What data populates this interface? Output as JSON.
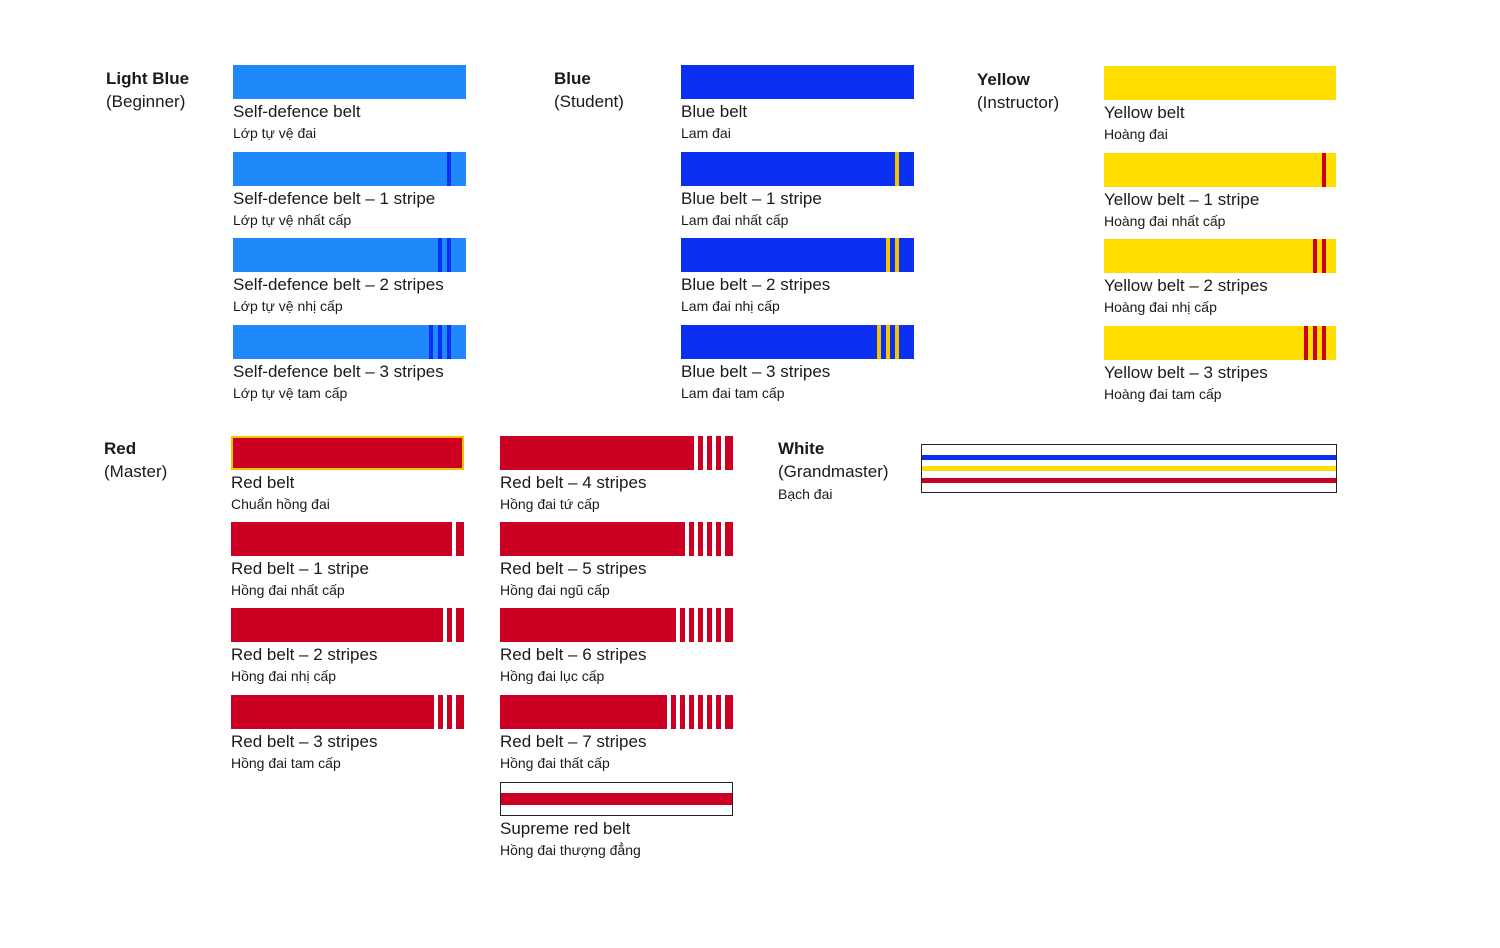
{
  "colors": {
    "light_blue": "#1f88fb",
    "light_blue_stripe": "#0b2ff0",
    "blue": "#0a2ff0",
    "blue_stripe": "#f2c400",
    "yellow": "#ffde00",
    "yellow_stripe": "#cc0022",
    "red": "#cc0022",
    "red_stripe": "#ffffff",
    "white": "#ffffff"
  },
  "groups": {
    "light_blue": {
      "name": "Light Blue",
      "rank": "(Beginner)",
      "belts": [
        {
          "label": "Self-defence belt",
          "sub": "Lớp tự vệ đai",
          "stripes": 0
        },
        {
          "label": "Self-defence belt – 1 stripe",
          "sub": "Lớp tự vệ nhất cấp",
          "stripes": 1
        },
        {
          "label": "Self-defence belt – 2 stripes",
          "sub": "Lớp tự vệ nhị cấp",
          "stripes": 2
        },
        {
          "label": "Self-defence belt – 3 stripes",
          "sub": "Lớp tự vệ tam cấp",
          "stripes": 3
        }
      ]
    },
    "blue": {
      "name": "Blue",
      "rank": "(Student)",
      "belts": [
        {
          "label": "Blue belt",
          "sub": "Lam đai",
          "stripes": 0
        },
        {
          "label": "Blue belt – 1 stripe",
          "sub": "Lam đai nhất cấp",
          "stripes": 1
        },
        {
          "label": "Blue belt – 2 stripes",
          "sub": "Lam đai nhị cấp",
          "stripes": 2
        },
        {
          "label": "Blue belt – 3 stripes",
          "sub": "Lam đai tam cấp",
          "stripes": 3
        }
      ]
    },
    "yellow": {
      "name": "Yellow",
      "rank": "(Instructor)",
      "belts": [
        {
          "label": "Yellow belt",
          "sub": "Hoàng đai",
          "stripes": 0
        },
        {
          "label": "Yellow belt – 1 stripe",
          "sub": "Hoàng đai nhất cấp",
          "stripes": 1
        },
        {
          "label": "Yellow belt – 2 stripes",
          "sub": "Hoàng đai nhị cấp",
          "stripes": 2
        },
        {
          "label": "Yellow belt – 3 stripes",
          "sub": "Hoàng đai tam cấp",
          "stripes": 3
        }
      ]
    },
    "red": {
      "name": "Red",
      "rank": "(Master)",
      "belts": [
        {
          "label": "Red belt",
          "sub": "Chuẩn hồng đai",
          "stripes": 0
        },
        {
          "label": "Red belt – 1 stripe",
          "sub": "Hồng đai nhất cấp",
          "stripes": 1
        },
        {
          "label": "Red belt – 2 stripes",
          "sub": "Hồng đai nhị cấp",
          "stripes": 2
        },
        {
          "label": "Red belt – 3 stripes",
          "sub": "Hồng đai tam cấp",
          "stripes": 3
        },
        {
          "label": "Red belt – 4 stripes",
          "sub": "Hồng đai tứ cấp",
          "stripes": 4
        },
        {
          "label": "Red belt – 5 stripes",
          "sub": "Hồng đai ngũ cấp",
          "stripes": 5
        },
        {
          "label": "Red belt – 6 stripes",
          "sub": "Hồng đai lục cấp",
          "stripes": 6
        },
        {
          "label": "Red belt – 7 stripes",
          "sub": "Hồng đai thất cấp",
          "stripes": 7
        }
      ],
      "supreme": {
        "label": "Supreme red belt",
        "sub": "Hồng đai thượng đẳng"
      }
    },
    "white": {
      "name": "White",
      "rank": "(Grandmaster)",
      "sub": "Bạch đai",
      "bands": [
        "#0a2ff0",
        "#ffde00",
        "#cc0022"
      ]
    }
  }
}
